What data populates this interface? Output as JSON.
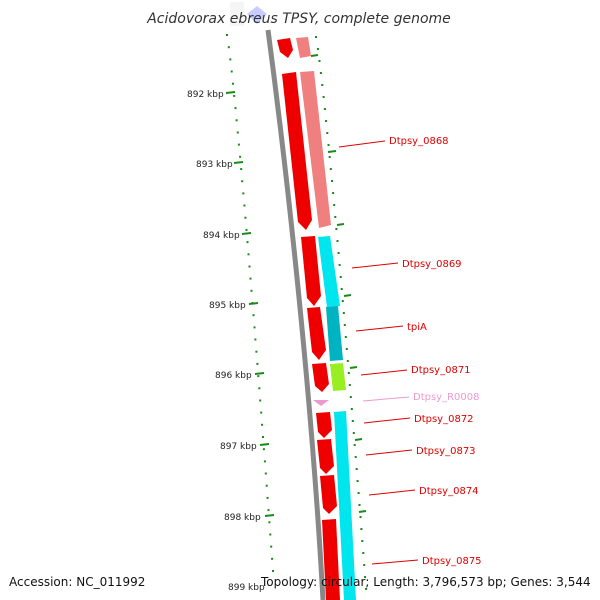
{
  "title": "Acidovorax ebreus TPSY, complete genome",
  "footer": {
    "accession": "Accession: NC_011992",
    "topology": "Topology: circular; Length: 3,796,573 bp; Genes: 3,544"
  },
  "ticks": [
    "892 kbp",
    "893 kbp",
    "894 kbp",
    "895 kbp",
    "896 kbp",
    "897 kbp",
    "898 kbp",
    "899 kbp"
  ],
  "genes": [
    {
      "label": "Dtpsy_0868",
      "color": "#dd0000"
    },
    {
      "label": "Dtpsy_0869",
      "color": "#dd0000"
    },
    {
      "label": "tpiA",
      "color": "#dd0000"
    },
    {
      "label": "Dtpsy_0871",
      "color": "#dd0000"
    },
    {
      "label": "Dtpsy_R0008",
      "color": "#ee99cc"
    },
    {
      "label": "Dtpsy_0872",
      "color": "#dd0000"
    },
    {
      "label": "Dtpsy_0873",
      "color": "#dd0000"
    },
    {
      "label": "Dtpsy_0874",
      "color": "#dd0000"
    },
    {
      "label": "Dtpsy_0875",
      "color": "#dd0000"
    }
  ],
  "colors": {
    "cds": "#ee0000",
    "cds_light": "#f08080",
    "cyan": "#00e5ee",
    "teal": "#00b3c0",
    "lime": "#99ee22",
    "rna": "#ee99cc",
    "backbone": "#888888",
    "dots": "#1a8a1a"
  }
}
